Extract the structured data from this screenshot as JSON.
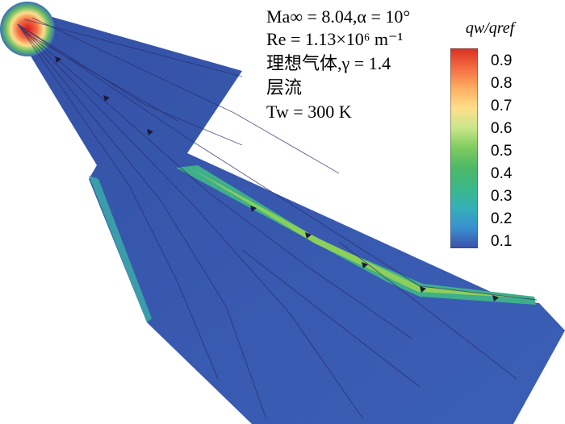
{
  "conditions": {
    "mach": "Ma∞ = 8.04,α = 10°",
    "reynolds": "Re = 1.13×10⁶ m⁻¹",
    "gas": "理想气体,γ = 1.4",
    "flow": "层流",
    "wall_temp": "Tw = 300 K"
  },
  "colorbar": {
    "title": "qw/qref",
    "ticks": [
      "0.9",
      "0.8",
      "0.7",
      "0.6",
      "0.5",
      "0.4",
      "0.3",
      "0.2",
      "0.1"
    ],
    "colors": [
      "#d7301f",
      "#f46d43",
      "#fdae61",
      "#fee08b",
      "#d9ef8b",
      "#a6d96a",
      "#66bd63",
      "#3ab87a",
      "#33b0a8",
      "#3a9fd0",
      "#3a5fb0"
    ]
  }
}
